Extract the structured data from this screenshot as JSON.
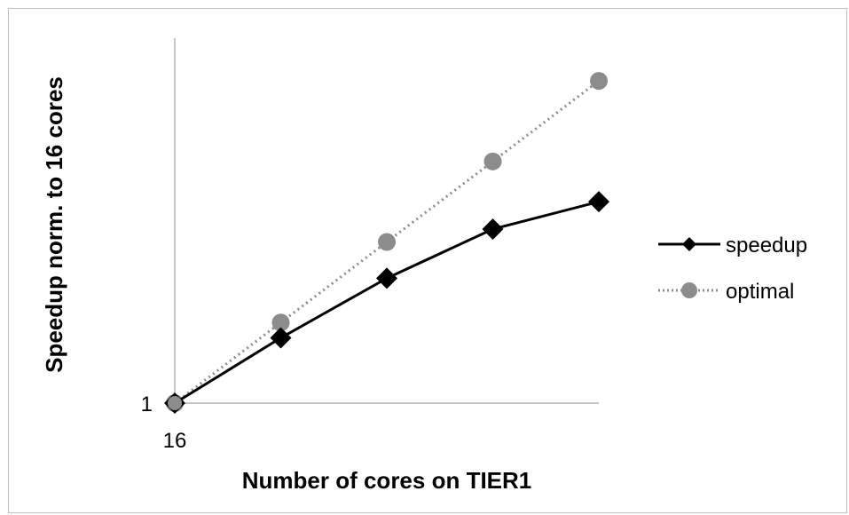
{
  "chart_data": {
    "type": "line",
    "title": "",
    "xlabel": "Number of cores on TIER1",
    "ylabel": "Speedup norm. to 16 cores",
    "x_tick_label": "16",
    "y_tick_label": "1",
    "x": [
      1,
      2,
      3,
      4,
      5
    ],
    "xlim": [
      1,
      5
    ],
    "ylim": [
      1,
      5.53
    ],
    "series": [
      {
        "name": "speedup",
        "values": [
          1.0,
          1.81,
          2.55,
          3.16,
          3.5
        ],
        "color": "#000000",
        "line": "solid",
        "marker": "diamond"
      },
      {
        "name": "optimal",
        "values": [
          1.0,
          2.0,
          3.0,
          4.0,
          5.0
        ],
        "color": "#8c8c8c",
        "line": "dotted",
        "marker": "circle"
      }
    ],
    "legend_position": "right",
    "grid": false
  }
}
